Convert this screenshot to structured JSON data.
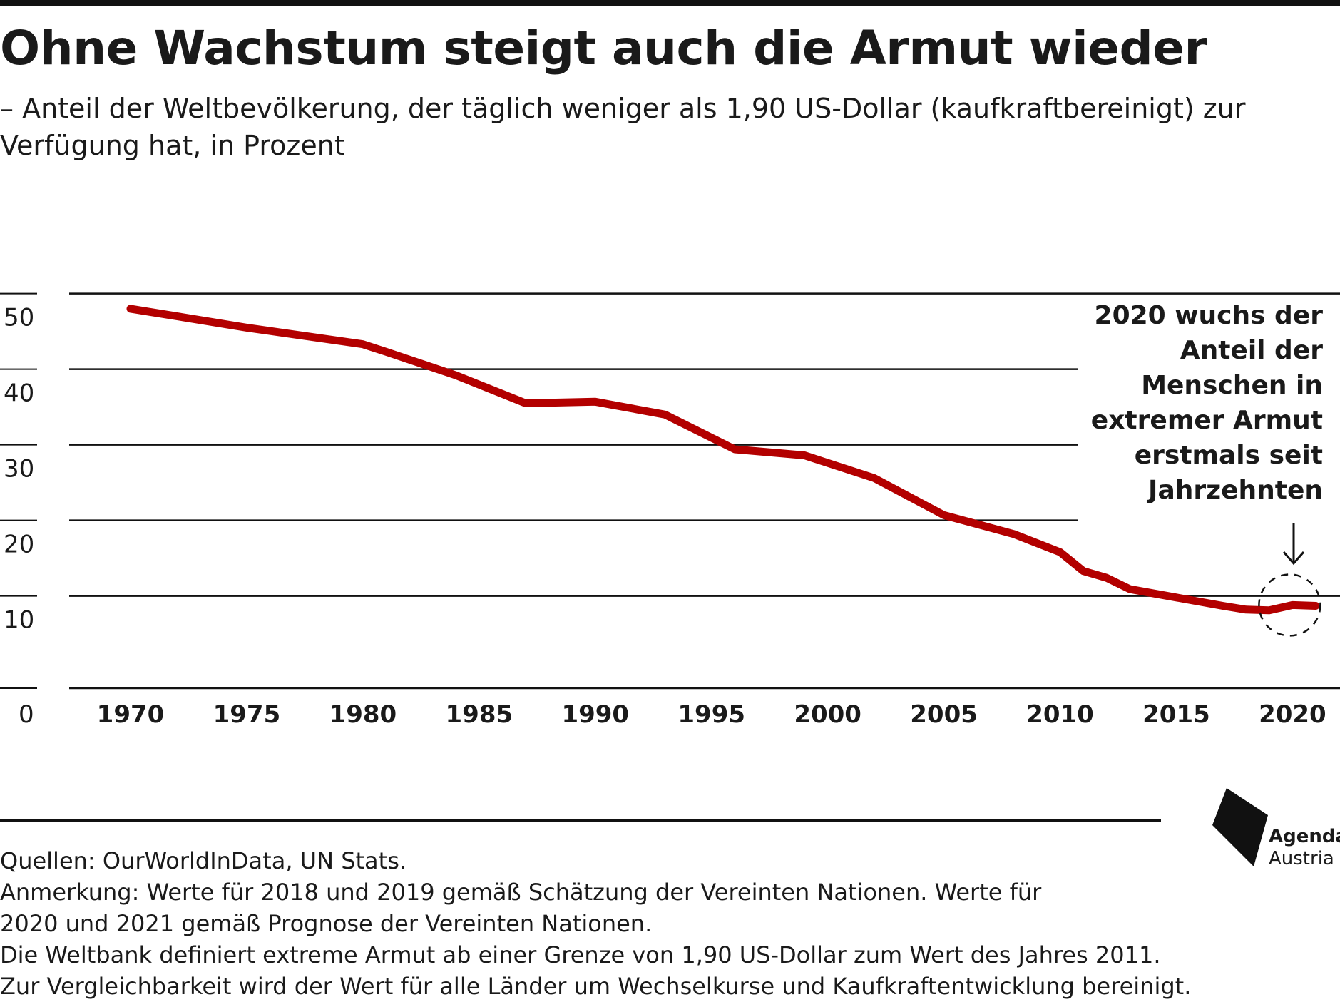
{
  "header": {
    "title": "Ohne Wachstum steigt auch die Armut wieder",
    "subtitle": "– Anteil der Weltbevölkerung, der täglich weniger als 1,90 US-Dollar (kaufkraftbereinigt) zur Verfügung hat, in Prozent"
  },
  "chart_data": {
    "type": "line",
    "title": "Ohne Wachstum steigt auch die Armut wieder",
    "subtitle": "– Anteil der Weltbevölkerung, der täglich weniger als 1,90 US-Dollar (kaufkraftbereinigt) zur Verfügung hat, in Prozent",
    "xlabel": "",
    "ylabel": "",
    "xlim": [
      1967,
      2022.5
    ],
    "ylim": [
      0,
      50
    ],
    "grid": true,
    "y_ticks": [
      0,
      10,
      20,
      30,
      40,
      50
    ],
    "x_ticks": [
      1970,
      1975,
      1980,
      1985,
      1990,
      1995,
      2000,
      2005,
      2010,
      2015,
      2020
    ],
    "line_color": "#b30000",
    "series": [
      {
        "x": [
          1970,
          1975,
          1980,
          1981,
          1984,
          1987,
          1990,
          1993,
          1996,
          1999,
          2002,
          2005,
          2008,
          2010,
          2011,
          2012,
          2013,
          2015,
          2017,
          2018,
          2019,
          2020,
          2021
        ],
        "values": [
          48,
          45.5,
          43.3,
          42.3,
          39.2,
          35.5,
          35.7,
          34,
          29.4,
          28.6,
          25.6,
          20.7,
          18.2,
          15.8,
          13.3,
          12.4,
          10.9,
          9.8,
          8.7,
          8.2,
          8.1,
          8.8,
          8.7
        ]
      }
    ],
    "annotation": {
      "text": "2020 wuchs der Anteil der Menschen in extremer Armut erstmals seit Jahrzehnten",
      "x": 2020,
      "y": 8.8
    }
  },
  "footer": {
    "sources": "Quellen: OurWorldInData, UN Stats.",
    "note1": "Anmerkung: Werte für 2018 und 2019 gemäß Schätzung der Vereinten Nationen. Werte für",
    "note2": "2020 und 2021 gemäß Prognose der Vereinten Nationen.",
    "note3": "Die Weltbank definiert extreme Armut ab einer Grenze von 1,90 US-Dollar zum Wert des Jahres 2011.",
    "note4": "Zur Vergleichbarkeit wird der Wert für alle Länder um Wechselkurse und Kaufkraftentwicklung bereinigt."
  },
  "logo": {
    "name": "Agenda",
    "sub": "Austria"
  }
}
